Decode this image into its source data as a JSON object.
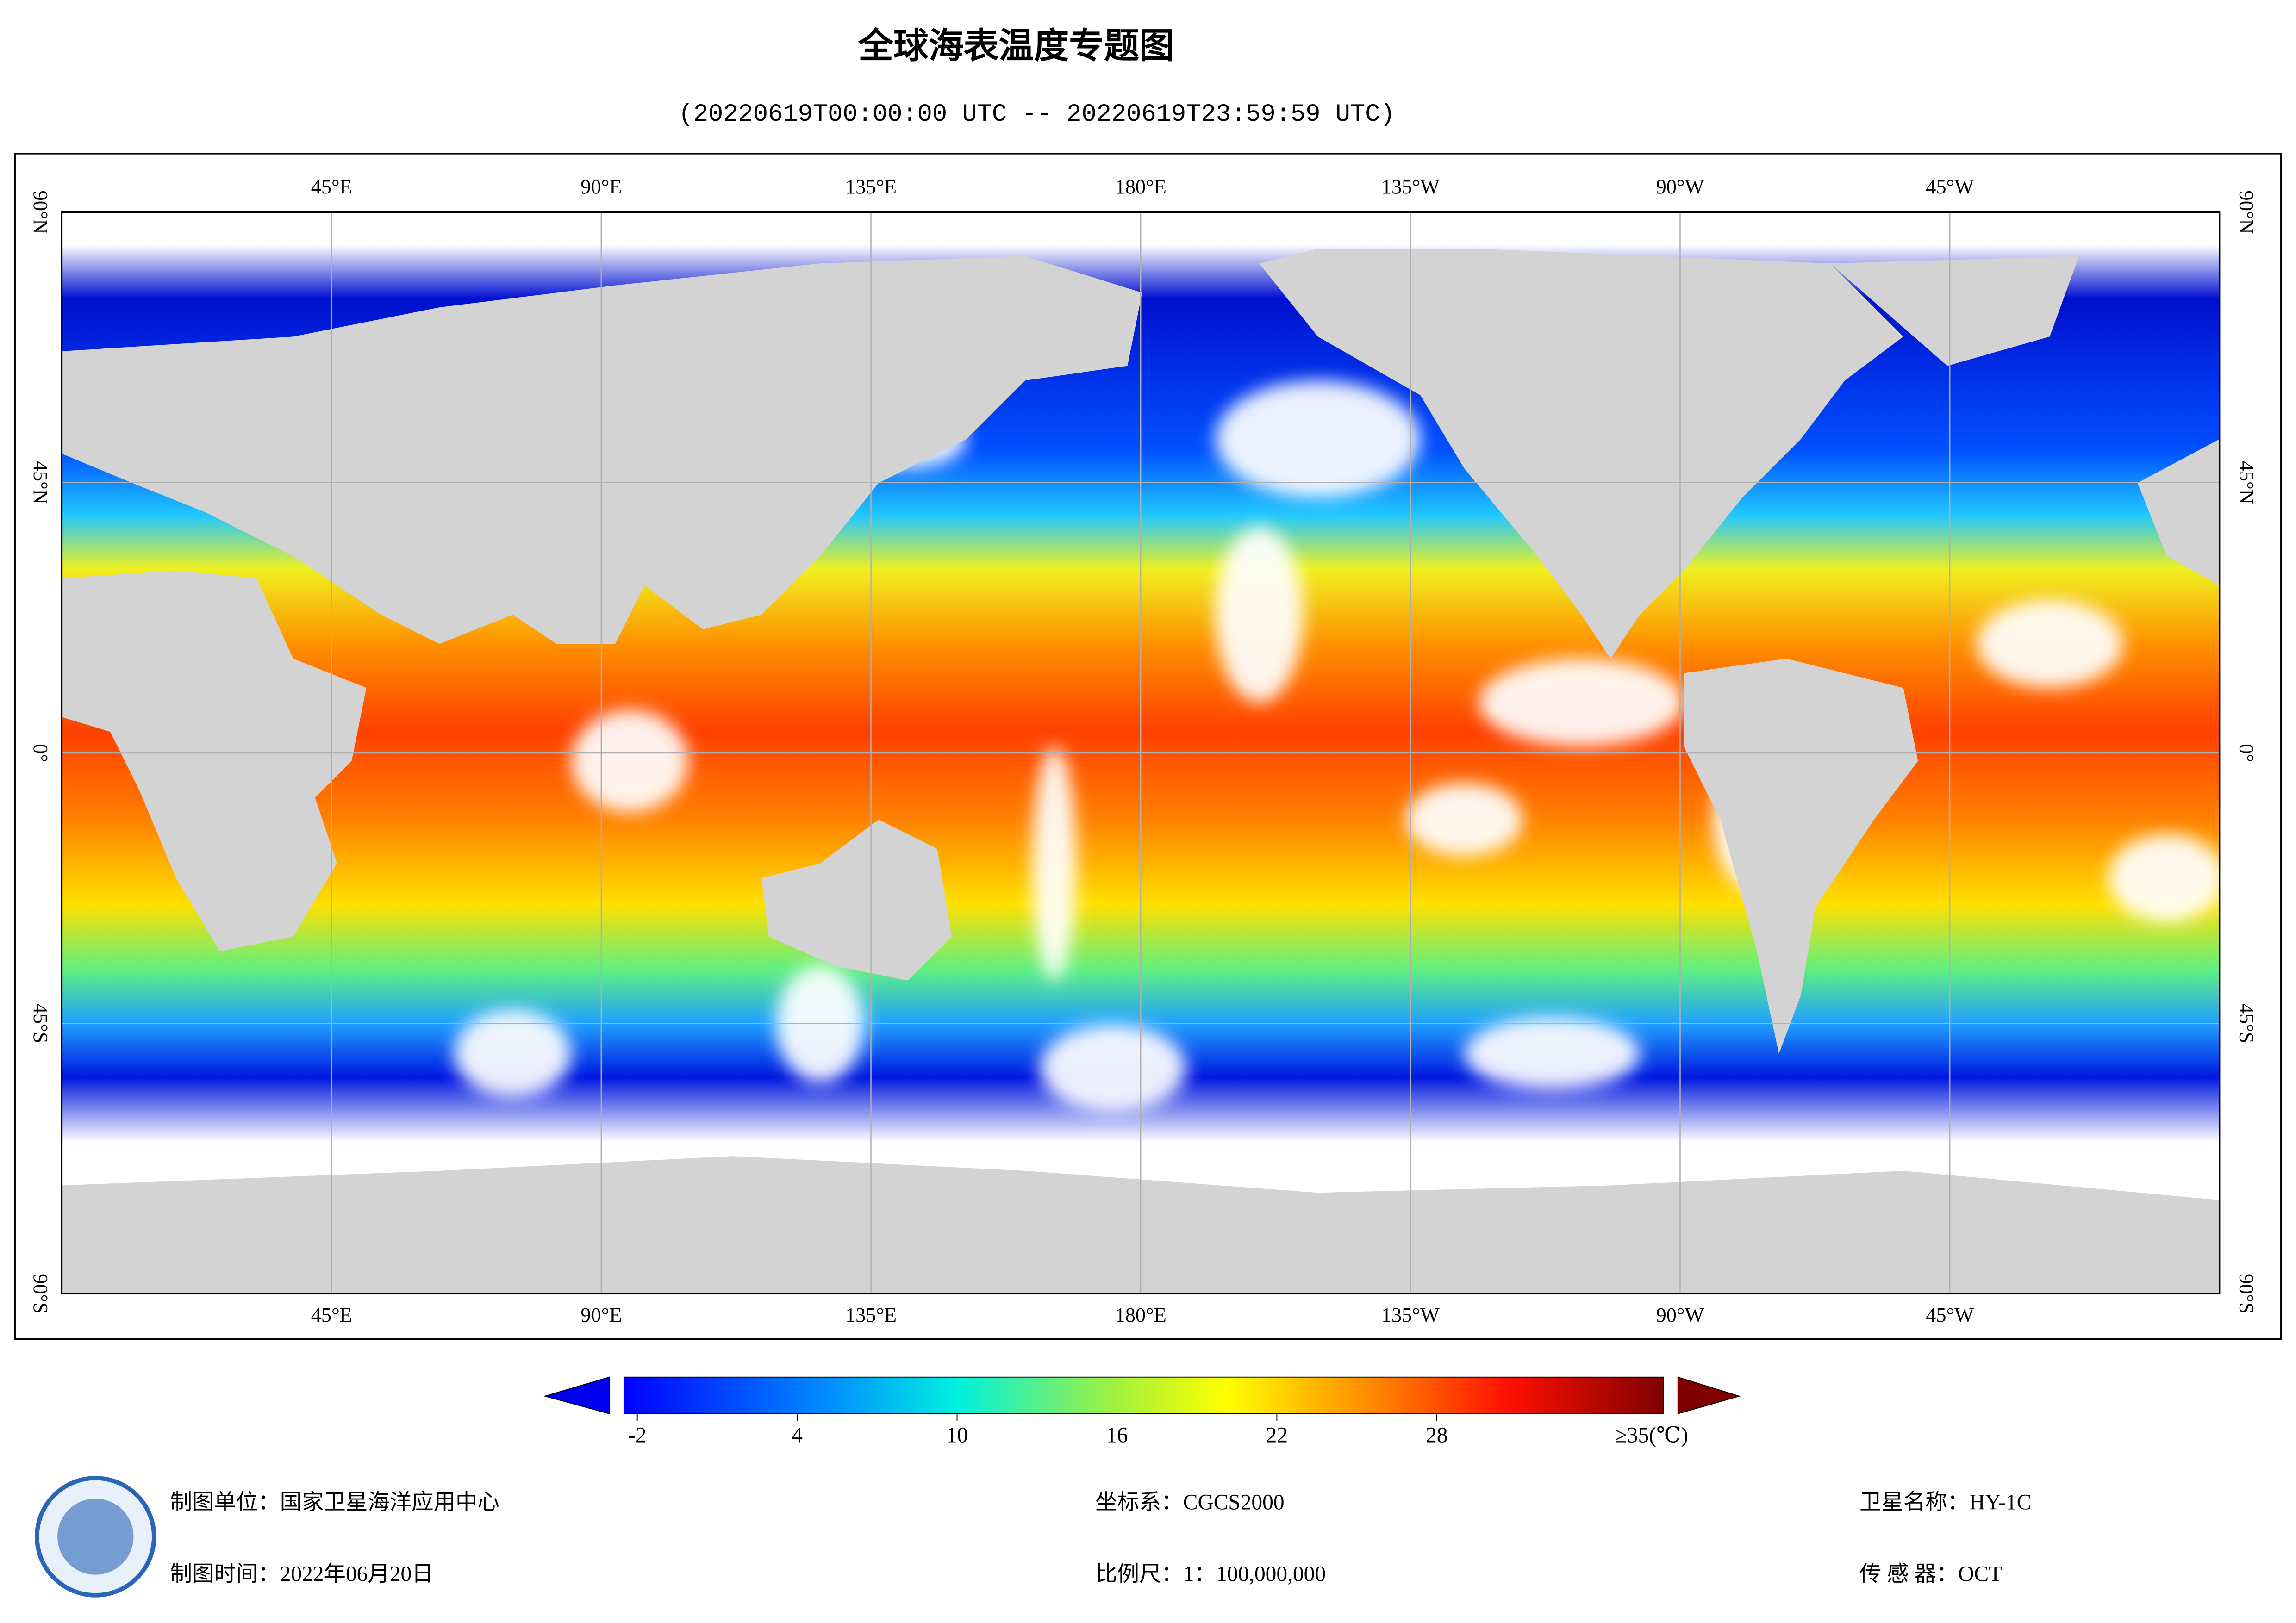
{
  "header": {
    "title": "全球海表温度专题图",
    "subtitle": "(20220619T00:00:00 UTC -- 20220619T23:59:59 UTC)"
  },
  "map": {
    "xlim": [
      0,
      360
    ],
    "ylim": [
      -90,
      90
    ],
    "lon_ticks": [
      {
        "value": 45,
        "label": "45°E"
      },
      {
        "value": 90,
        "label": "90°E"
      },
      {
        "value": 135,
        "label": "135°E"
      },
      {
        "value": 180,
        "label": "180°E"
      },
      {
        "value": 225,
        "label": "135°W"
      },
      {
        "value": 270,
        "label": "90°W"
      },
      {
        "value": 315,
        "label": "45°W"
      }
    ],
    "lat_ticks": [
      {
        "value": 90,
        "label": "90°N"
      },
      {
        "value": 45,
        "label": "45°N"
      },
      {
        "value": 0,
        "label": "0°"
      },
      {
        "value": -45,
        "label": "45°S"
      },
      {
        "value": -90,
        "label": "90°S"
      }
    ]
  },
  "colorbar": {
    "range": [
      -2.5,
      36.5
    ],
    "ticks": [
      -2,
      4,
      10,
      16,
      22,
      28
    ],
    "max_label": "≥35(℃)"
  },
  "footer": {
    "unit": "制图单位：国家卫星海洋应用中心",
    "date": "制图时间：2022年06月20日",
    "crs": "坐标系：CGCS2000",
    "scale": "比例尺：1：100,000,000",
    "satellite": "卫星名称：HY-1C",
    "sensor": "传 感 器：OCT"
  }
}
